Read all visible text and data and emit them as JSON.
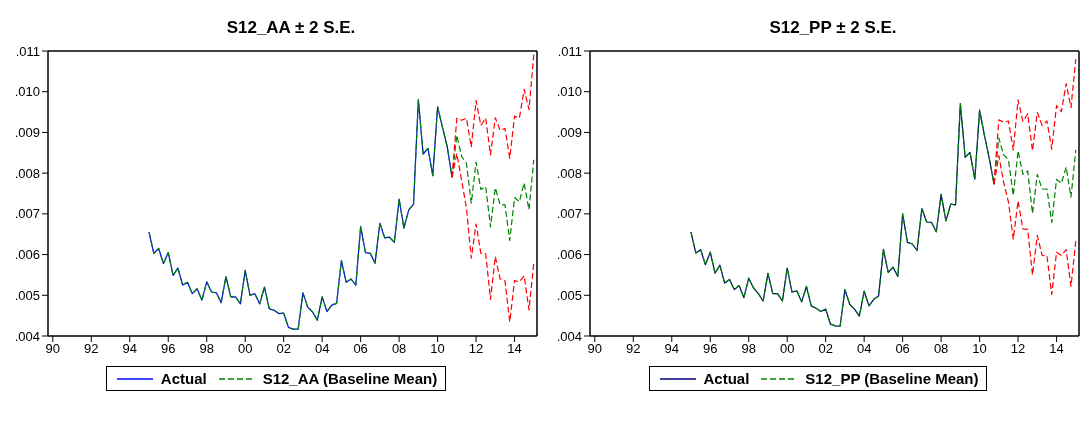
{
  "chart_data": [
    {
      "type": "line",
      "title": "S12_AA ± 2 S.E.",
      "legend": "bottom",
      "xlim": [
        "1989-10",
        "2015-03"
      ],
      "ylim": [
        0.004,
        0.011
      ],
      "xticks": [
        {
          "value": "1990",
          "label": "90"
        },
        {
          "value": "1992",
          "label": "92"
        },
        {
          "value": "1994",
          "label": "94"
        },
        {
          "value": "1996",
          "label": "96"
        },
        {
          "value": "1998",
          "label": "98"
        },
        {
          "value": "2000",
          "label": "00"
        },
        {
          "value": "2002",
          "label": "02"
        },
        {
          "value": "2004",
          "label": "04"
        },
        {
          "value": "2006",
          "label": "06"
        },
        {
          "value": "2008",
          "label": "08"
        },
        {
          "value": "2010",
          "label": "10"
        },
        {
          "value": "2012",
          "label": "12"
        },
        {
          "value": "2014",
          "label": "14"
        }
      ],
      "yticks": [
        {
          "value": 0.004,
          "label": ".004"
        },
        {
          "value": 0.005,
          "label": ".005"
        },
        {
          "value": 0.006,
          "label": ".006"
        },
        {
          "value": 0.007,
          "label": ".007"
        },
        {
          "value": 0.008,
          "label": ".008"
        },
        {
          "value": 0.009,
          "label": ".009"
        },
        {
          "value": 0.01,
          "label": ".010"
        },
        {
          "value": 0.011,
          "label": ".011"
        }
      ],
      "x": [
        "1995-01",
        "1995-04",
        "1995-07",
        "1995-10",
        "1996-01",
        "1996-04",
        "1996-07",
        "1996-10",
        "1997-01",
        "1997-04",
        "1997-07",
        "1997-10",
        "1998-01",
        "1998-04",
        "1998-07",
        "1998-10",
        "1999-01",
        "1999-04",
        "1999-07",
        "1999-10",
        "2000-01",
        "2000-04",
        "2000-07",
        "2000-10",
        "2001-01",
        "2001-04",
        "2001-07",
        "2001-10",
        "2002-01",
        "2002-04",
        "2002-07",
        "2002-10",
        "2003-01",
        "2003-04",
        "2003-07",
        "2003-10",
        "2004-01",
        "2004-04",
        "2004-07",
        "2004-10",
        "2005-01",
        "2005-04",
        "2005-07",
        "2005-10",
        "2006-01",
        "2006-04",
        "2006-07",
        "2006-10",
        "2007-01",
        "2007-04",
        "2007-07",
        "2007-10",
        "2008-01",
        "2008-04",
        "2008-07",
        "2008-10",
        "2009-01",
        "2009-04",
        "2009-07",
        "2009-10",
        "2010-01",
        "2010-04",
        "2010-07",
        "2010-10",
        "2011-01",
        "2011-04",
        "2011-07",
        "2011-10",
        "2012-01",
        "2012-04",
        "2012-07",
        "2012-10",
        "2013-01",
        "2013-04",
        "2013-07",
        "2013-10",
        "2014-01",
        "2014-04",
        "2014-07",
        "2014-10",
        "2015-01"
      ],
      "series": [
        {
          "name": "Actual",
          "color": "#0000ff",
          "line_style": "solid",
          "values": [
            0.00655,
            0.00603,
            0.00615,
            0.00578,
            0.00605,
            0.00549,
            0.00567,
            0.00525,
            0.00532,
            0.00504,
            0.00516,
            0.00488,
            0.00533,
            0.00508,
            0.00506,
            0.00482,
            0.00546,
            0.00496,
            0.00496,
            0.00479,
            0.00561,
            0.005,
            0.00504,
            0.00479,
            0.0052,
            0.00467,
            0.00463,
            0.00455,
            0.00456,
            0.00421,
            0.00417,
            0.00417,
            0.00506,
            0.00471,
            0.00459,
            0.00439,
            0.00496,
            0.0046,
            0.00476,
            0.0048,
            0.00585,
            0.00532,
            0.0054,
            0.00525,
            0.00669,
            0.00605,
            0.00603,
            0.00579,
            0.00677,
            0.00641,
            0.00643,
            0.0063,
            0.00736,
            0.00665,
            0.0071,
            0.00724,
            0.0098,
            0.00847,
            0.00861,
            0.00794,
            0.00963,
            0.00913,
            0.00865,
            0.0079,
            null,
            null,
            null,
            null,
            null,
            null,
            null,
            null,
            null,
            null,
            null,
            null,
            null,
            null,
            null,
            null,
            null
          ]
        },
        {
          "name": "S12_AA (Baseline Mean)",
          "color": "#008000",
          "line_style": "dashed",
          "values": [
            0.00655,
            0.00603,
            0.00615,
            0.00578,
            0.00605,
            0.00549,
            0.00567,
            0.00525,
            0.00532,
            0.00504,
            0.00516,
            0.00488,
            0.00533,
            0.00508,
            0.00506,
            0.00482,
            0.00546,
            0.00496,
            0.00496,
            0.00479,
            0.00561,
            0.005,
            0.00504,
            0.00479,
            0.0052,
            0.00467,
            0.00463,
            0.00455,
            0.00456,
            0.00421,
            0.00417,
            0.00417,
            0.00506,
            0.00471,
            0.00459,
            0.00439,
            0.00496,
            0.0046,
            0.00476,
            0.0048,
            0.00585,
            0.00532,
            0.0054,
            0.00525,
            0.00669,
            0.00605,
            0.00603,
            0.00579,
            0.00677,
            0.00641,
            0.00643,
            0.0063,
            0.00736,
            0.00665,
            0.0071,
            0.00724,
            0.0098,
            0.00847,
            0.00861,
            0.00794,
            0.00963,
            0.00913,
            0.00865,
            0.0079,
            0.00893,
            0.00841,
            0.00824,
            0.00726,
            0.00827,
            0.0076,
            0.00767,
            0.00668,
            0.00764,
            0.00722,
            0.00722,
            0.00635,
            0.0074,
            0.0073,
            0.00776,
            0.0071,
            0.00833
          ]
        },
        {
          "color": "#ff0000",
          "line_style": "dashed",
          "values": [
            null,
            null,
            null,
            null,
            null,
            null,
            null,
            null,
            null,
            null,
            null,
            null,
            null,
            null,
            null,
            null,
            null,
            null,
            null,
            null,
            null,
            null,
            null,
            null,
            null,
            null,
            null,
            null,
            null,
            null,
            null,
            null,
            null,
            null,
            null,
            null,
            null,
            null,
            null,
            null,
            null,
            null,
            null,
            null,
            null,
            null,
            null,
            null,
            null,
            null,
            null,
            null,
            null,
            null,
            null,
            null,
            null,
            null,
            null,
            null,
            null,
            null,
            null,
            0.0079,
            0.00935,
            0.0093,
            0.00935,
            0.00864,
            0.00978,
            0.00917,
            0.00935,
            0.00845,
            0.00936,
            0.00905,
            0.0091,
            0.00837,
            0.0094,
            0.00935,
            0.01006,
            0.00956,
            0.01091
          ]
        },
        {
          "color": "#ff0000",
          "line_style": "dashed",
          "values": [
            null,
            null,
            null,
            null,
            null,
            null,
            null,
            null,
            null,
            null,
            null,
            null,
            null,
            null,
            null,
            null,
            null,
            null,
            null,
            null,
            null,
            null,
            null,
            null,
            null,
            null,
            null,
            null,
            null,
            null,
            null,
            null,
            null,
            null,
            null,
            null,
            null,
            null,
            null,
            null,
            null,
            null,
            null,
            null,
            null,
            null,
            null,
            null,
            null,
            null,
            null,
            null,
            null,
            null,
            null,
            null,
            null,
            null,
            null,
            null,
            null,
            null,
            null,
            0.0079,
            0.00848,
            0.00782,
            0.00714,
            0.00591,
            0.00675,
            0.00603,
            0.00602,
            0.0049,
            0.00595,
            0.0054,
            0.00536,
            0.00435,
            0.00536,
            0.00533,
            0.00548,
            0.00464,
            0.00579
          ]
        }
      ]
    },
    {
      "type": "line",
      "title": "S12_PP ± 2 S.E.",
      "legend": "bottom",
      "xlim": [
        "1989-10",
        "2015-03"
      ],
      "ylim": [
        0.004,
        0.011
      ],
      "xticks": [
        {
          "value": "1990",
          "label": "90"
        },
        {
          "value": "1992",
          "label": "92"
        },
        {
          "value": "1994",
          "label": "94"
        },
        {
          "value": "1996",
          "label": "96"
        },
        {
          "value": "1998",
          "label": "98"
        },
        {
          "value": "2000",
          "label": "00"
        },
        {
          "value": "2002",
          "label": "02"
        },
        {
          "value": "2004",
          "label": "04"
        },
        {
          "value": "2006",
          "label": "06"
        },
        {
          "value": "2008",
          "label": "08"
        },
        {
          "value": "2010",
          "label": "10"
        },
        {
          "value": "2012",
          "label": "12"
        },
        {
          "value": "2014",
          "label": "14"
        }
      ],
      "yticks": [
        {
          "value": 0.004,
          "label": ".004"
        },
        {
          "value": 0.005,
          "label": ".005"
        },
        {
          "value": 0.006,
          "label": ".006"
        },
        {
          "value": 0.007,
          "label": ".007"
        },
        {
          "value": 0.008,
          "label": ".008"
        },
        {
          "value": 0.009,
          "label": ".009"
        },
        {
          "value": 0.01,
          "label": ".010"
        },
        {
          "value": 0.011,
          "label": ".011"
        }
      ],
      "x": [
        "1995-01",
        "1995-04",
        "1995-07",
        "1995-10",
        "1996-01",
        "1996-04",
        "1996-07",
        "1996-10",
        "1997-01",
        "1997-04",
        "1997-07",
        "1997-10",
        "1998-01",
        "1998-04",
        "1998-07",
        "1998-10",
        "1999-01",
        "1999-04",
        "1999-07",
        "1999-10",
        "2000-01",
        "2000-04",
        "2000-07",
        "2000-10",
        "2001-01",
        "2001-04",
        "2001-07",
        "2001-10",
        "2002-01",
        "2002-04",
        "2002-07",
        "2002-10",
        "2003-01",
        "2003-04",
        "2003-07",
        "2003-10",
        "2004-01",
        "2004-04",
        "2004-07",
        "2004-10",
        "2005-01",
        "2005-04",
        "2005-07",
        "2005-10",
        "2006-01",
        "2006-04",
        "2006-07",
        "2006-10",
        "2007-01",
        "2007-04",
        "2007-07",
        "2007-10",
        "2008-01",
        "2008-04",
        "2008-07",
        "2008-10",
        "2009-01",
        "2009-04",
        "2009-07",
        "2009-10",
        "2010-01",
        "2010-04",
        "2010-07",
        "2010-10",
        "2011-01",
        "2011-04",
        "2011-07",
        "2011-10",
        "2012-01",
        "2012-04",
        "2012-07",
        "2012-10",
        "2013-01",
        "2013-04",
        "2013-07",
        "2013-10",
        "2014-01",
        "2014-04",
        "2014-07",
        "2014-10",
        "2015-01"
      ],
      "series": [
        {
          "name": "Actual",
          "color": "#000080",
          "line_style": "solid",
          "values": [
            0.00655,
            0.00604,
            0.00612,
            0.00575,
            0.00606,
            0.00554,
            0.00574,
            0.0053,
            0.00539,
            0.00514,
            0.00524,
            0.00494,
            0.00542,
            0.00518,
            0.00504,
            0.00486,
            0.00554,
            0.00504,
            0.00504,
            0.00486,
            0.00567,
            0.00508,
            0.00511,
            0.00484,
            0.00522,
            0.00474,
            0.00468,
            0.0046,
            0.00466,
            0.00429,
            0.00425,
            0.00424,
            0.00514,
            0.00478,
            0.00466,
            0.00449,
            0.0051,
            0.00474,
            0.0049,
            0.00498,
            0.00613,
            0.00556,
            0.00569,
            0.00546,
            0.007,
            0.0063,
            0.00626,
            0.0061,
            0.00713,
            0.0068,
            0.00679,
            0.00656,
            0.00748,
            0.00683,
            0.00724,
            0.00722,
            0.00971,
            0.00839,
            0.00851,
            0.00785,
            0.00955,
            0.00893,
            0.00837,
            0.00773,
            null,
            null,
            null,
            null,
            null,
            null,
            null,
            null,
            null,
            null,
            null,
            null,
            null,
            null,
            null,
            null,
            null
          ]
        },
        {
          "name": "S12_PP (Baseline Mean)",
          "color": "#008000",
          "line_style": "dashed",
          "values": [
            0.00655,
            0.00604,
            0.00612,
            0.00575,
            0.00606,
            0.00554,
            0.00574,
            0.0053,
            0.00539,
            0.00514,
            0.00524,
            0.00494,
            0.00542,
            0.00518,
            0.00504,
            0.00486,
            0.00554,
            0.00504,
            0.00504,
            0.00486,
            0.00567,
            0.00508,
            0.00511,
            0.00484,
            0.00522,
            0.00474,
            0.00468,
            0.0046,
            0.00466,
            0.00429,
            0.00425,
            0.00424,
            0.00514,
            0.00478,
            0.00466,
            0.00449,
            0.0051,
            0.00474,
            0.0049,
            0.00498,
            0.00613,
            0.00556,
            0.00569,
            0.00546,
            0.007,
            0.0063,
            0.00626,
            0.0061,
            0.00713,
            0.0068,
            0.00679,
            0.00656,
            0.00748,
            0.00683,
            0.00724,
            0.00722,
            0.00971,
            0.00839,
            0.00851,
            0.00785,
            0.00955,
            0.00893,
            0.00837,
            0.00773,
            0.00886,
            0.00845,
            0.00833,
            0.00745,
            0.00855,
            0.00797,
            0.00805,
            0.00701,
            0.00797,
            0.00761,
            0.00761,
            0.00679,
            0.00785,
            0.00775,
            0.00815,
            0.00741,
            0.00857
          ]
        },
        {
          "color": "#ff0000",
          "line_style": "dashed",
          "values": [
            null,
            null,
            null,
            null,
            null,
            null,
            null,
            null,
            null,
            null,
            null,
            null,
            null,
            null,
            null,
            null,
            null,
            null,
            null,
            null,
            null,
            null,
            null,
            null,
            null,
            null,
            null,
            null,
            null,
            null,
            null,
            null,
            null,
            null,
            null,
            null,
            null,
            null,
            null,
            null,
            null,
            null,
            null,
            null,
            null,
            null,
            null,
            null,
            null,
            null,
            null,
            null,
            null,
            null,
            null,
            null,
            null,
            null,
            null,
            null,
            null,
            null,
            null,
            0.00773,
            0.00931,
            0.00925,
            0.00928,
            0.00857,
            0.0098,
            0.00927,
            0.00946,
            0.00855,
            0.00949,
            0.00917,
            0.00928,
            0.00859,
            0.00966,
            0.00951,
            0.0102,
            0.00961,
            0.0108
          ]
        },
        {
          "color": "#ff0000",
          "line_style": "dashed",
          "values": [
            null,
            null,
            null,
            null,
            null,
            null,
            null,
            null,
            null,
            null,
            null,
            null,
            null,
            null,
            null,
            null,
            null,
            null,
            null,
            null,
            null,
            null,
            null,
            null,
            null,
            null,
            null,
            null,
            null,
            null,
            null,
            null,
            null,
            null,
            null,
            null,
            null,
            null,
            null,
            null,
            null,
            null,
            null,
            null,
            null,
            null,
            null,
            null,
            null,
            null,
            null,
            null,
            null,
            null,
            null,
            null,
            null,
            null,
            null,
            null,
            null,
            null,
            null,
            0.00773,
            0.00843,
            0.00777,
            0.00729,
            0.00638,
            0.00732,
            0.00663,
            0.00662,
            0.0055,
            0.00647,
            0.00598,
            0.00597,
            0.00502,
            0.00606,
            0.00598,
            0.00612,
            0.00522,
            0.00633
          ]
        }
      ]
    }
  ]
}
